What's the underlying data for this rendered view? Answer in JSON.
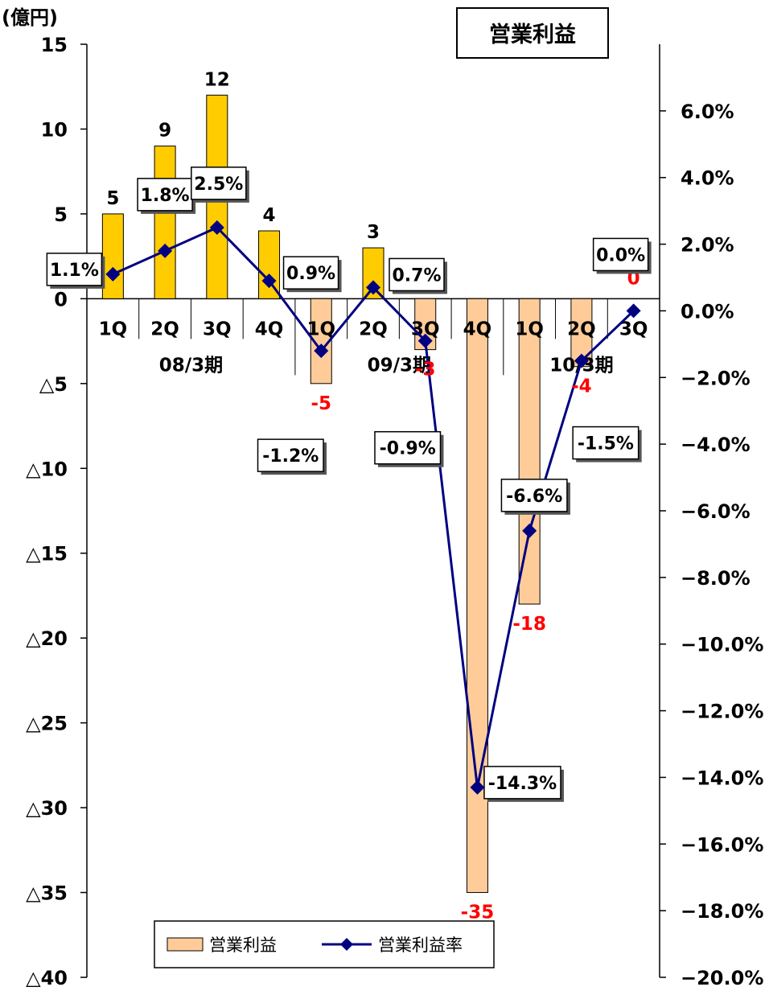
{
  "chart_data": {
    "type": "bar+line",
    "title": "営業利益",
    "y_unit_label": "(億円)",
    "quarters": [
      "1Q",
      "2Q",
      "3Q",
      "4Q",
      "1Q",
      "2Q",
      "3Q",
      "4Q",
      "1Q",
      "2Q",
      "3Q"
    ],
    "periods": [
      {
        "label": "08/3期",
        "start": 0,
        "end": 3
      },
      {
        "label": "09/3期",
        "start": 4,
        "end": 7
      },
      {
        "label": "10/3期",
        "start": 8,
        "end": 10
      }
    ],
    "series": [
      {
        "name": "営業利益",
        "kind": "bar",
        "axis": "left",
        "values": [
          5,
          9,
          12,
          4,
          -5,
          3,
          -3,
          -35,
          -18,
          -4,
          0
        ],
        "labels": [
          "5",
          "9",
          "12",
          "4",
          "-5",
          "3",
          "-3",
          "-35",
          "-18",
          "-4",
          "0"
        ],
        "positive_color": "#FFCC00",
        "negative_color": "#FFCC99"
      },
      {
        "name": "営業利益率",
        "kind": "line",
        "axis": "right",
        "values": [
          1.1,
          1.8,
          2.5,
          0.9,
          -1.2,
          0.7,
          -0.9,
          -14.3,
          -6.6,
          -1.5,
          0.0
        ],
        "labels": [
          "1.1%",
          "1.8%",
          "2.5%",
          "0.9%",
          "-1.2%",
          "0.7%",
          "-0.9%",
          "-14.3%",
          "-6.6%",
          "-1.5%",
          "0.0%"
        ],
        "color": "#000080"
      }
    ],
    "left_axis": {
      "ylim": [
        -40,
        15
      ],
      "ticks": [
        15,
        10,
        5,
        0,
        -5,
        -10,
        -15,
        -20,
        -25,
        -30,
        -35,
        -40
      ],
      "tick_labels": [
        "15",
        "10",
        "5",
        "0",
        "△5",
        "△10",
        "△15",
        "△20",
        "△25",
        "△30",
        "△35",
        "△40"
      ]
    },
    "right_axis": {
      "ylim": [
        -20,
        8
      ],
      "ticks": [
        6,
        4,
        2,
        0,
        -2,
        -4,
        -6,
        -8,
        -10,
        -12,
        -14,
        -16,
        -18,
        -20
      ],
      "tick_labels": [
        "6.0%",
        "4.0%",
        "2.0%",
        "0.0%",
        "−2.0%",
        "−4.0%",
        "−6.0%",
        "−8.0%",
        "−10.0%",
        "−12.0%",
        "−14.0%",
        "−16.0%",
        "−18.0%",
        "−20.0%"
      ]
    },
    "legend": {
      "position": "bottom",
      "items": [
        "営業利益",
        "営業利益率"
      ]
    },
    "value_label_negative_color": "#FF0000",
    "value_label_zero_color": "#FF0000"
  }
}
